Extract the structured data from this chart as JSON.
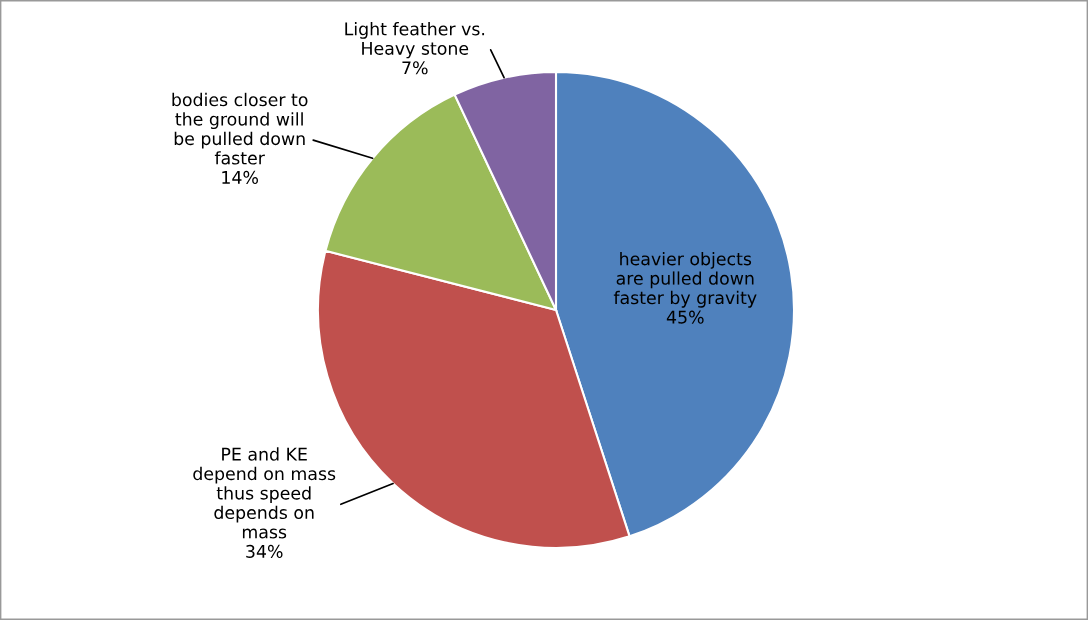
{
  "chart_data": {
    "type": "pie",
    "categories": [
      "heavier objects\nare pulled down\nfaster by gravity",
      "PE and KE\ndepend on mass\nthus speed\ndepends on\nmass",
      "bodies closer to\nthe ground will\nbe pulled down\nfaster",
      "Light feather vs.\nHeavy stone"
    ],
    "values": [
      45,
      34,
      14,
      7
    ],
    "value_labels": [
      "45%",
      "34%",
      "14%",
      "7%"
    ],
    "colors": [
      "#4f81bd",
      "#c0504d",
      "#9bbb59",
      "#8064a2"
    ],
    "legend": false
  }
}
